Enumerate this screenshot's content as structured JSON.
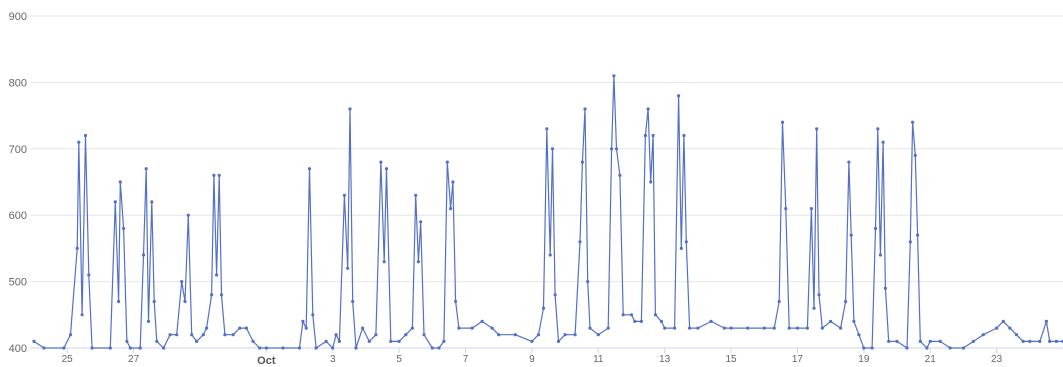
{
  "chart_data": {
    "type": "line",
    "title": "",
    "xlabel": "",
    "ylabel": "",
    "ylim": [
      400,
      900
    ],
    "y_ticks": [
      400,
      500,
      600,
      700,
      800,
      900
    ],
    "x_range": [
      "Sep 24",
      "Oct 25"
    ],
    "x_ticks": [
      "25",
      "27",
      "Oct",
      "3",
      "5",
      "7",
      "9",
      "11",
      "13",
      "15",
      "17",
      "19",
      "21",
      "23"
    ],
    "x_tick_dates": [
      "Sep 25",
      "Sep 27",
      "Oct 1",
      "Oct 3",
      "Oct 5",
      "Oct 7",
      "Oct 9",
      "Oct 11",
      "Oct 13",
      "Oct 15",
      "Oct 17",
      "Oct 19",
      "Oct 21",
      "Oct 23"
    ],
    "major_ticks": [
      "Oct"
    ],
    "grid": true,
    "legend": "none",
    "line_color": "#5470c6",
    "series": [
      {
        "values": [
          [
            "Sep 24",
            410
          ],
          [
            "Sep 24.3",
            400
          ],
          [
            "Sep 24.9",
            400
          ],
          [
            "Sep 25.1",
            420
          ],
          [
            "Sep 25.3",
            550
          ],
          [
            "Sep 25.35",
            710
          ],
          [
            "Sep 25.45",
            450
          ],
          [
            "Sep 25.55",
            720
          ],
          [
            "Sep 25.65",
            510
          ],
          [
            "Sep 25.75",
            400
          ],
          [
            "Sep 26.3",
            400
          ],
          [
            "Sep 26.45",
            620
          ],
          [
            "Sep 26.55",
            470
          ],
          [
            "Sep 26.6",
            650
          ],
          [
            "Sep 26.7",
            580
          ],
          [
            "Sep 26.8",
            410
          ],
          [
            "Sep 26.9",
            400
          ],
          [
            "Sep 27.2",
            400
          ],
          [
            "Sep 27.3",
            540
          ],
          [
            "Sep 27.38",
            670
          ],
          [
            "Sep 27.45",
            440
          ],
          [
            "Sep 27.55",
            620
          ],
          [
            "Sep 27.62",
            470
          ],
          [
            "Sep 27.7",
            410
          ],
          [
            "Sep 27.9",
            400
          ],
          [
            "Sep 28.1",
            420
          ],
          [
            "Sep 28.3",
            420
          ],
          [
            "Sep 28.45",
            500
          ],
          [
            "Sep 28.55",
            470
          ],
          [
            "Sep 28.65",
            600
          ],
          [
            "Sep 28.75",
            420
          ],
          [
            "Sep 28.9",
            410
          ],
          [
            "Sep 29.1",
            420
          ],
          [
            "Sep 29.2",
            430
          ],
          [
            "Sep 29.35",
            480
          ],
          [
            "Sep 29.42",
            660
          ],
          [
            "Sep 29.5",
            510
          ],
          [
            "Sep 29.58",
            660
          ],
          [
            "Sep 29.65",
            480
          ],
          [
            "Sep 29.75",
            420
          ],
          [
            "Sep 30",
            420
          ],
          [
            "Sep 30.2",
            430
          ],
          [
            "Sep 30.4",
            430
          ],
          [
            "Sep 30.6",
            410
          ],
          [
            "Sep 30.8",
            400
          ],
          [
            "Oct 1",
            400
          ],
          [
            "Oct 1.5",
            400
          ],
          [
            "Oct 2",
            400
          ],
          [
            "Oct 2.1",
            440
          ],
          [
            "Oct 2.2",
            430
          ],
          [
            "Oct 2.3",
            670
          ],
          [
            "Oct 2.4",
            450
          ],
          [
            "Oct 2.5",
            400
          ],
          [
            "Oct 2.8",
            410
          ],
          [
            "Oct 3",
            400
          ],
          [
            "Oct 3.1",
            420
          ],
          [
            "Oct 3.2",
            410
          ],
          [
            "Oct 3.35",
            630
          ],
          [
            "Oct 3.45",
            520
          ],
          [
            "Oct 3.52",
            760
          ],
          [
            "Oct 3.6",
            470
          ],
          [
            "Oct 3.7",
            400
          ],
          [
            "Oct 3.9",
            430
          ],
          [
            "Oct 4.1",
            410
          ],
          [
            "Oct 4.3",
            420
          ],
          [
            "Oct 4.45",
            680
          ],
          [
            "Oct 4.55",
            530
          ],
          [
            "Oct 4.62",
            670
          ],
          [
            "Oct 4.75",
            410
          ],
          [
            "Oct 5",
            410
          ],
          [
            "Oct 5.2",
            420
          ],
          [
            "Oct 5.4",
            430
          ],
          [
            "Oct 5.5",
            630
          ],
          [
            "Oct 5.58",
            530
          ],
          [
            "Oct 5.65",
            590
          ],
          [
            "Oct 5.75",
            420
          ],
          [
            "Oct 6",
            400
          ],
          [
            "Oct 6.2",
            400
          ],
          [
            "Oct 6.35",
            410
          ],
          [
            "Oct 6.45",
            680
          ],
          [
            "Oct 6.55",
            610
          ],
          [
            "Oct 6.62",
            650
          ],
          [
            "Oct 6.7",
            470
          ],
          [
            "Oct 6.8",
            430
          ],
          [
            "Oct 7.2",
            430
          ],
          [
            "Oct 7.5",
            440
          ],
          [
            "Oct 7.8",
            430
          ],
          [
            "Oct 8",
            420
          ],
          [
            "Oct 8.5",
            420
          ],
          [
            "Oct 9",
            410
          ],
          [
            "Oct 9.2",
            420
          ],
          [
            "Oct 9.35",
            460
          ],
          [
            "Oct 9.45",
            730
          ],
          [
            "Oct 9.55",
            540
          ],
          [
            "Oct 9.62",
            700
          ],
          [
            "Oct 9.7",
            480
          ],
          [
            "Oct 9.8",
            410
          ],
          [
            "Oct 10",
            420
          ],
          [
            "Oct 10.3",
            420
          ],
          [
            "Oct 10.45",
            560
          ],
          [
            "Oct 10.52",
            680
          ],
          [
            "Oct 10.6",
            760
          ],
          [
            "Oct 10.68",
            500
          ],
          [
            "Oct 10.75",
            430
          ],
          [
            "Oct 11",
            420
          ],
          [
            "Oct 11.3",
            430
          ],
          [
            "Oct 11.4",
            700
          ],
          [
            "Oct 11.47",
            810
          ],
          [
            "Oct 11.55",
            700
          ],
          [
            "Oct 11.65",
            660
          ],
          [
            "Oct 11.75",
            450
          ],
          [
            "Oct 12",
            450
          ],
          [
            "Oct 12.1",
            440
          ],
          [
            "Oct 12.3",
            440
          ],
          [
            "Oct 12.42",
            720
          ],
          [
            "Oct 12.5",
            760
          ],
          [
            "Oct 12.58",
            650
          ],
          [
            "Oct 12.65",
            720
          ],
          [
            "Oct 12.72",
            450
          ],
          [
            "Oct 12.9",
            440
          ],
          [
            "Oct 13",
            430
          ],
          [
            "Oct 13.3",
            430
          ],
          [
            "Oct 13.42",
            780
          ],
          [
            "Oct 13.5",
            550
          ],
          [
            "Oct 13.58",
            720
          ],
          [
            "Oct 13.65",
            560
          ],
          [
            "Oct 13.75",
            430
          ],
          [
            "Oct 14",
            430
          ],
          [
            "Oct 14.4",
            440
          ],
          [
            "Oct 14.8",
            430
          ],
          [
            "Oct 15",
            430
          ],
          [
            "Oct 15.5",
            430
          ],
          [
            "Oct 16",
            430
          ],
          [
            "Oct 16.3",
            430
          ],
          [
            "Oct 16.45",
            470
          ],
          [
            "Oct 16.55",
            740
          ],
          [
            "Oct 16.65",
            610
          ],
          [
            "Oct 16.75",
            430
          ],
          [
            "Oct 17",
            430
          ],
          [
            "Oct 17.3",
            430
          ],
          [
            "Oct 17.42",
            610
          ],
          [
            "Oct 17.5",
            460
          ],
          [
            "Oct 17.58",
            730
          ],
          [
            "Oct 17.65",
            480
          ],
          [
            "Oct 17.75",
            430
          ],
          [
            "Oct 18",
            440
          ],
          [
            "Oct 18.3",
            430
          ],
          [
            "Oct 18.45",
            470
          ],
          [
            "Oct 18.55",
            680
          ],
          [
            "Oct 18.62",
            570
          ],
          [
            "Oct 18.7",
            440
          ],
          [
            "Oct 18.85",
            420
          ],
          [
            "Oct 19",
            400
          ],
          [
            "Oct 19.25",
            400
          ],
          [
            "Oct 19.35",
            580
          ],
          [
            "Oct 19.42",
            730
          ],
          [
            "Oct 19.5",
            540
          ],
          [
            "Oct 19.58",
            710
          ],
          [
            "Oct 19.65",
            490
          ],
          [
            "Oct 19.75",
            410
          ],
          [
            "Oct 20",
            410
          ],
          [
            "Oct 20.3",
            400
          ],
          [
            "Oct 20.4",
            560
          ],
          [
            "Oct 20.47",
            740
          ],
          [
            "Oct 20.55",
            690
          ],
          [
            "Oct 20.62",
            570
          ],
          [
            "Oct 20.7",
            410
          ],
          [
            "Oct 20.9",
            400
          ],
          [
            "Oct 21",
            410
          ],
          [
            "Oct 21.3",
            410
          ],
          [
            "Oct 21.6",
            400
          ],
          [
            "Oct 22",
            400
          ],
          [
            "Oct 22.3",
            410
          ],
          [
            "Oct 22.6",
            420
          ],
          [
            "Oct 23",
            430
          ],
          [
            "Oct 23.2",
            440
          ],
          [
            "Oct 23.4",
            430
          ],
          [
            "Oct 23.6",
            420
          ],
          [
            "Oct 23.8",
            410
          ],
          [
            "Oct 24",
            410
          ],
          [
            "Oct 24.3",
            410
          ],
          [
            "Oct 24.5",
            440
          ],
          [
            "Oct 24.6",
            410
          ],
          [
            "Oct 24.8",
            410
          ],
          [
            "Oct 25",
            410
          ]
        ]
      }
    ]
  }
}
